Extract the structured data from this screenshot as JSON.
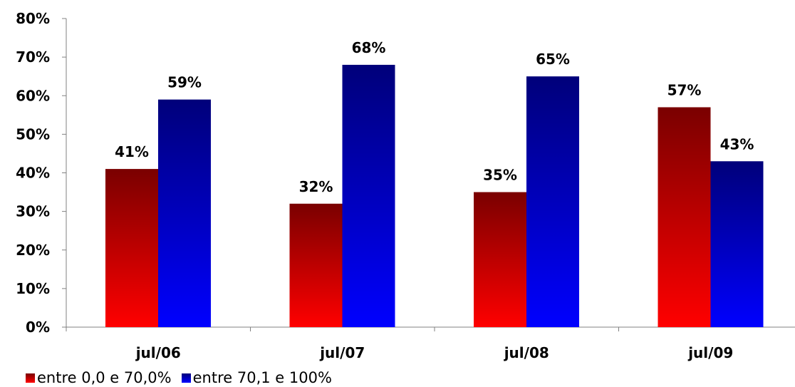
{
  "chart_data": {
    "type": "bar",
    "categories": [
      "jul/06",
      "jul/07",
      "jul/08",
      "jul/09"
    ],
    "series": [
      {
        "name": "entre 0,0 e 70,0%",
        "values": [
          41,
          32,
          35,
          57
        ],
        "labels": [
          "41%",
          "32%",
          "35%",
          "57%"
        ],
        "color_top": "#7a0000",
        "color_bottom": "#ff0000"
      },
      {
        "name": "entre 70,1 e 100%",
        "values": [
          59,
          68,
          65,
          43
        ],
        "labels": [
          "59%",
          "68%",
          "65%",
          "43%"
        ],
        "color_top": "#00007a",
        "color_bottom": "#0000ff"
      }
    ],
    "y_ticks": [
      "0%",
      "10%",
      "20%",
      "30%",
      "40%",
      "50%",
      "60%",
      "70%",
      "80%"
    ],
    "ylim": [
      0,
      80
    ],
    "grid": false,
    "legend_position": "bottom-left",
    "title": "",
    "xlabel": "",
    "ylabel": ""
  }
}
